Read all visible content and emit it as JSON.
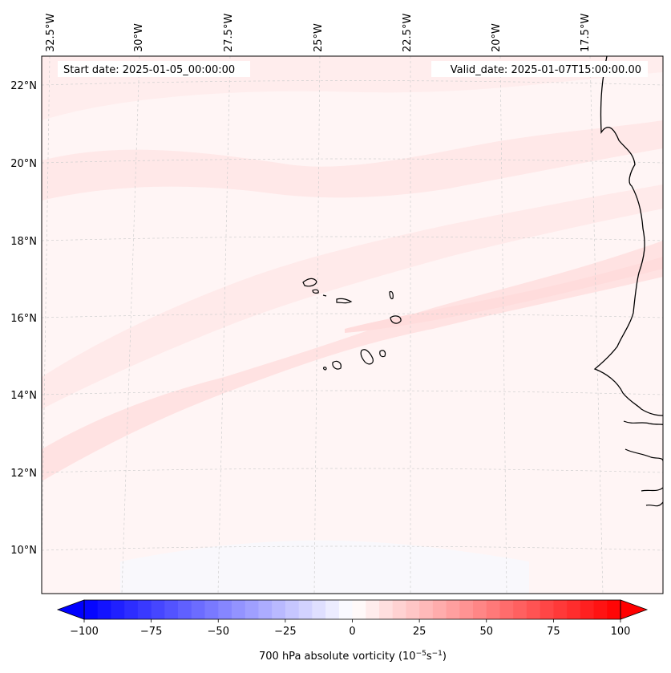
{
  "header": {
    "start_date": "Start date: 2025-01-05_00:00:00",
    "valid_date": "Valid_date: 2025-01-07T15:00:00.00"
  },
  "axes": {
    "lon_labels": [
      "32.5°W",
      "30°W",
      "27.5°W",
      "25°W",
      "22.5°W",
      "20°W",
      "17.5°W"
    ],
    "lat_labels": [
      "22°N",
      "20°N",
      "18°N",
      "16°N",
      "14°N",
      "12°N",
      "10°N"
    ]
  },
  "colorbar": {
    "label": "700 hPa absolute vorticity (10",
    "label_exp1": "−5",
    "label_mid": "s",
    "label_exp2": "−1",
    "label_end": ")",
    "ticks": [
      "−100",
      "−75",
      "−50",
      "−25",
      "0",
      "25",
      "50",
      "75",
      "100"
    ],
    "vmin": -100,
    "vmax": 100,
    "levels": 40,
    "low_color": "#0000ff",
    "mid_color": "#ffffff",
    "high_color": "#ff0000"
  },
  "map": {
    "background_color": "#fff5f5",
    "band_color": "#ffe4e4",
    "coast_color": "#000000",
    "grid_color": "#cccccc"
  }
}
